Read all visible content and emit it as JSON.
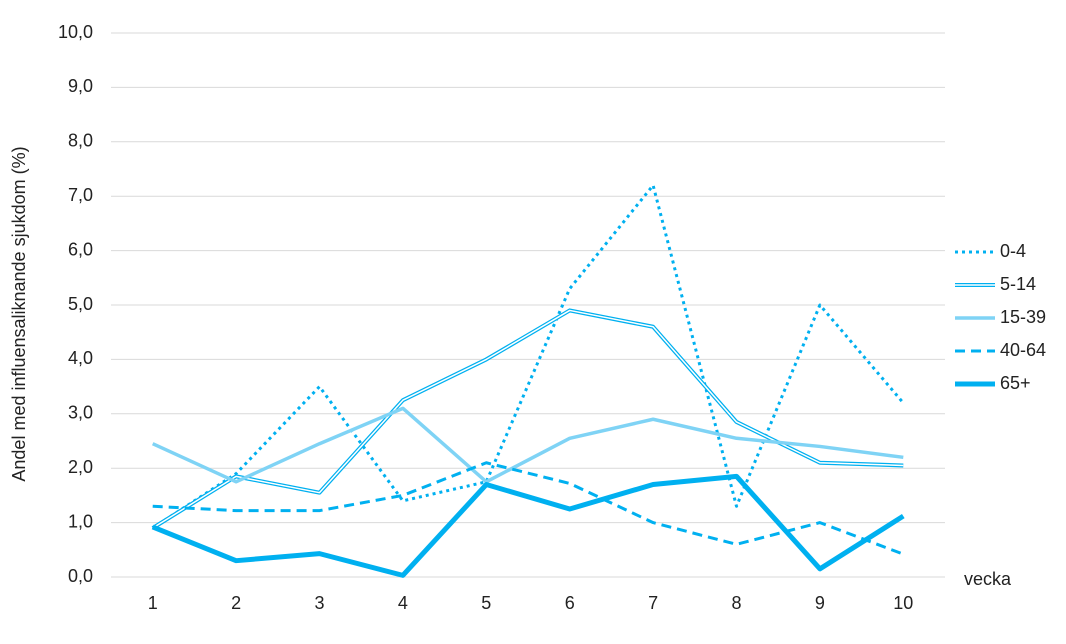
{
  "chart_data": {
    "type": "line",
    "y_label": "Andel med influensaliknande sjukdom (%)",
    "x_label": "vecka",
    "categories": [
      "1",
      "2",
      "3",
      "4",
      "5",
      "6",
      "7",
      "8",
      "9",
      "10"
    ],
    "ylim": [
      0,
      10
    ],
    "yticks": [
      {
        "value": 0,
        "label": "0,0"
      },
      {
        "value": 1,
        "label": "1,0"
      },
      {
        "value": 2,
        "label": "2,0"
      },
      {
        "value": 3,
        "label": "3,0"
      },
      {
        "value": 4,
        "label": "4,0"
      },
      {
        "value": 5,
        "label": "5,0"
      },
      {
        "value": 6,
        "label": "6,0"
      },
      {
        "value": 7,
        "label": "7,0"
      },
      {
        "value": 8,
        "label": "8,0"
      },
      {
        "value": 9,
        "label": "9,0"
      },
      {
        "value": 10,
        "label": "10,0"
      }
    ],
    "grid": true,
    "legend": "right",
    "series": [
      {
        "name": "0-4",
        "color": "#00b0f0",
        "style": "dotted",
        "values": [
          0.9,
          1.9,
          3.5,
          1.4,
          1.75,
          5.3,
          7.2,
          1.3,
          5.0,
          3.2
        ]
      },
      {
        "name": "5-14",
        "color": "#00b0f0",
        "style": "double",
        "values": [
          0.9,
          1.85,
          1.55,
          3.25,
          4.0,
          4.9,
          4.6,
          2.85,
          2.1,
          2.05
        ]
      },
      {
        "name": "15-39",
        "color": "#7fd3f5",
        "style": "solid",
        "values": [
          2.45,
          1.75,
          2.45,
          3.1,
          1.75,
          2.55,
          2.9,
          2.55,
          2.4,
          2.2
        ]
      },
      {
        "name": "40-64",
        "color": "#00b0f0",
        "style": "dashed",
        "values": [
          1.3,
          1.22,
          1.22,
          1.5,
          2.1,
          1.72,
          1.0,
          0.6,
          1.0,
          0.42
        ]
      },
      {
        "name": "65+",
        "color": "#00b0f0",
        "style": "thick",
        "values": [
          0.92,
          0.3,
          0.43,
          0.03,
          1.7,
          1.25,
          1.7,
          1.85,
          0.15,
          1.12
        ]
      }
    ]
  }
}
